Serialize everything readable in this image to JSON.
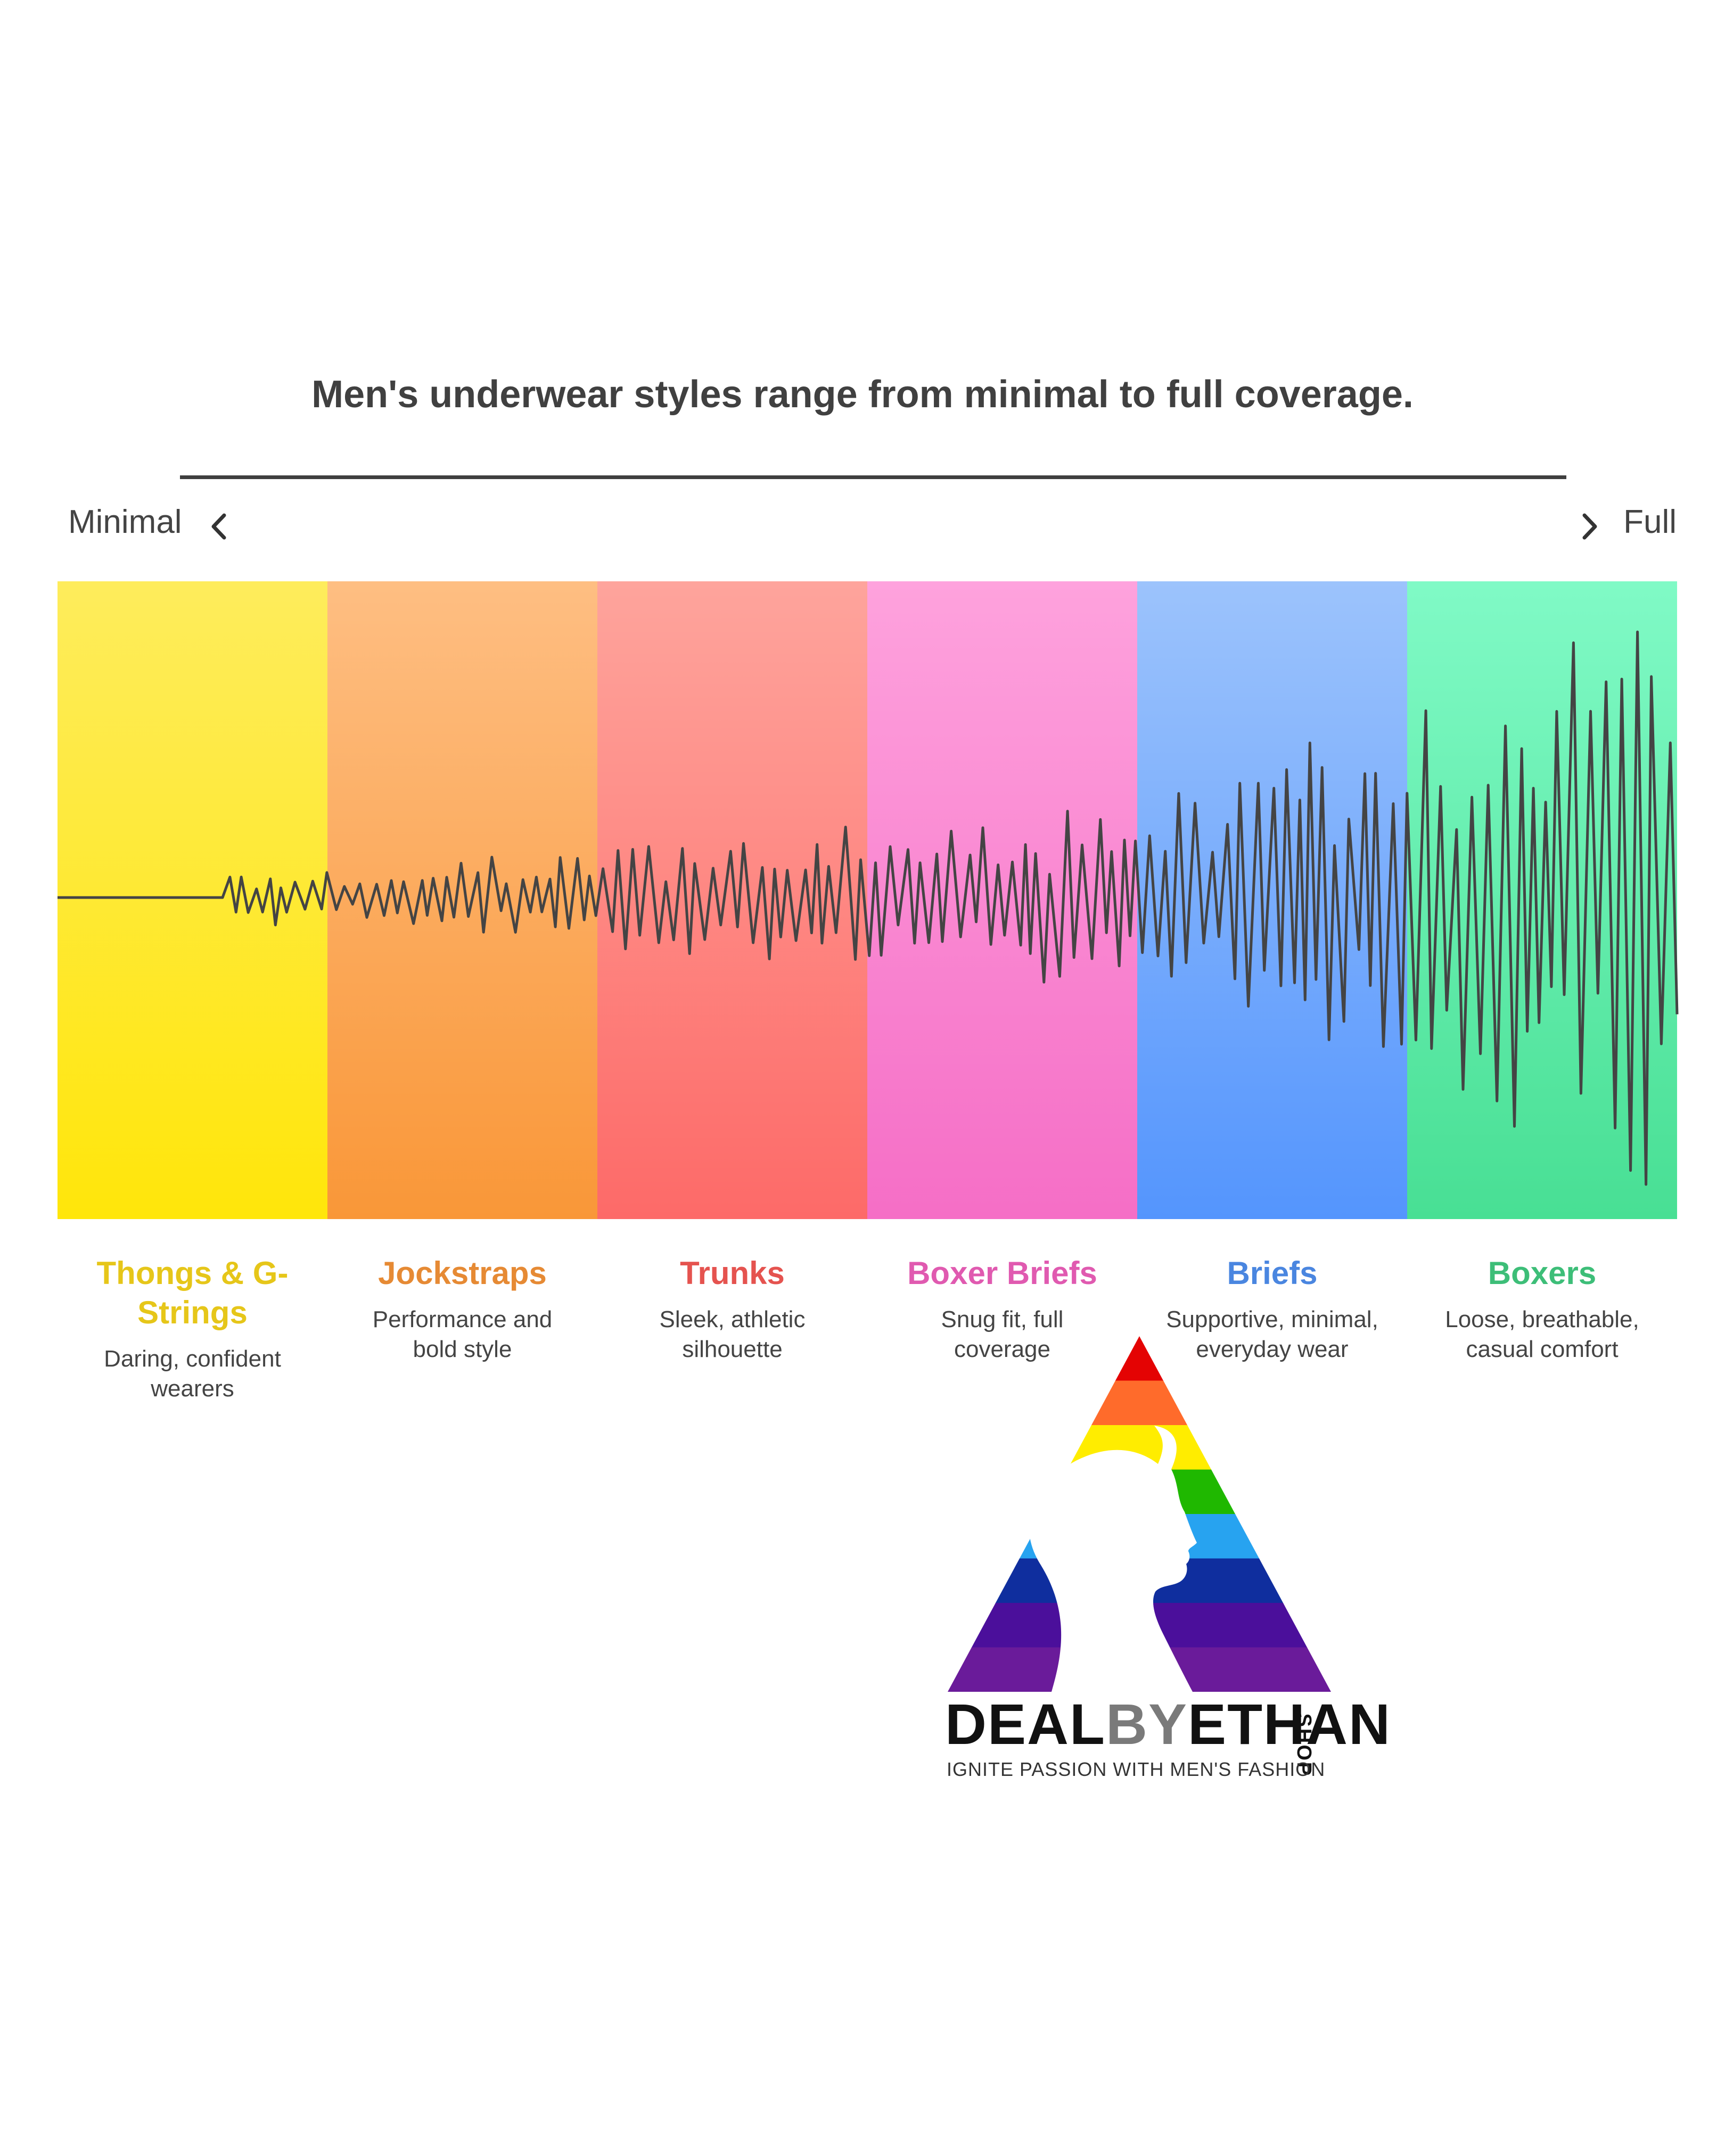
{
  "title": "Men's underwear styles range from minimal to full coverage.",
  "scale": {
    "min_label": "Minimal",
    "max_label": "Full"
  },
  "categories": [
    {
      "name": "Thongs & G-Strings",
      "name_lines": [
        "Thongs & G-",
        "Strings"
      ],
      "desc_lines": [
        "Daring, confident",
        "wearers"
      ],
      "color": "#E6C619",
      "top": "#FEEC5C",
      "bottom": "#FFE60A"
    },
    {
      "name": "Jockstraps",
      "name_lines": [
        "Jockstraps"
      ],
      "desc_lines": [
        "Performance and",
        "bold style"
      ],
      "color": "#E68A34",
      "top": "#FEBE82",
      "bottom": "#F99738"
    },
    {
      "name": "Trunks",
      "name_lines": [
        "Trunks"
      ],
      "desc_lines": [
        "Sleek, athletic",
        "silhouette"
      ],
      "color": "#E5534F",
      "top": "#FEA49C",
      "bottom": "#FD6A68"
    },
    {
      "name": "Boxer Briefs",
      "name_lines": [
        "Boxer Briefs"
      ],
      "desc_lines": [
        "Snug fit, full",
        "coverage"
      ],
      "color": "#E05AB0",
      "top": "#FEA2DD",
      "bottom": "#F56EC6"
    },
    {
      "name": "Briefs",
      "name_lines": [
        "Briefs"
      ],
      "desc_lines": [
        "Supportive, minimal,",
        "everyday wear"
      ],
      "color": "#4A86E0",
      "top": "#9CC3FC",
      "bottom": "#5495FD"
    },
    {
      "name": "Boxers",
      "name_lines": [
        "Boxers"
      ],
      "desc_lines": [
        "Loose, breathable,",
        "casual comfort"
      ],
      "color": "#3DBE78",
      "top": "#80FAC6",
      "bottom": "#48DF94"
    }
  ],
  "wave_color": "#444444",
  "icons": {
    "left": "chevron-left-icon",
    "right": "chevron-right-icon"
  },
  "logo": {
    "word_dark_1": "DEAL",
    "word_gray": "BY",
    "word_dark_2": "ETHAN",
    "tld": ".SHOP",
    "tagline": "IGNITE PASSION WITH MEN'S FASHION",
    "stripe_colors": [
      "#E40303",
      "#FF6B2B",
      "#FFED00",
      "#1FB800",
      "#27A3F0",
      "#0F2E9E",
      "#4B0F9B",
      "#6A1B9A"
    ]
  }
}
